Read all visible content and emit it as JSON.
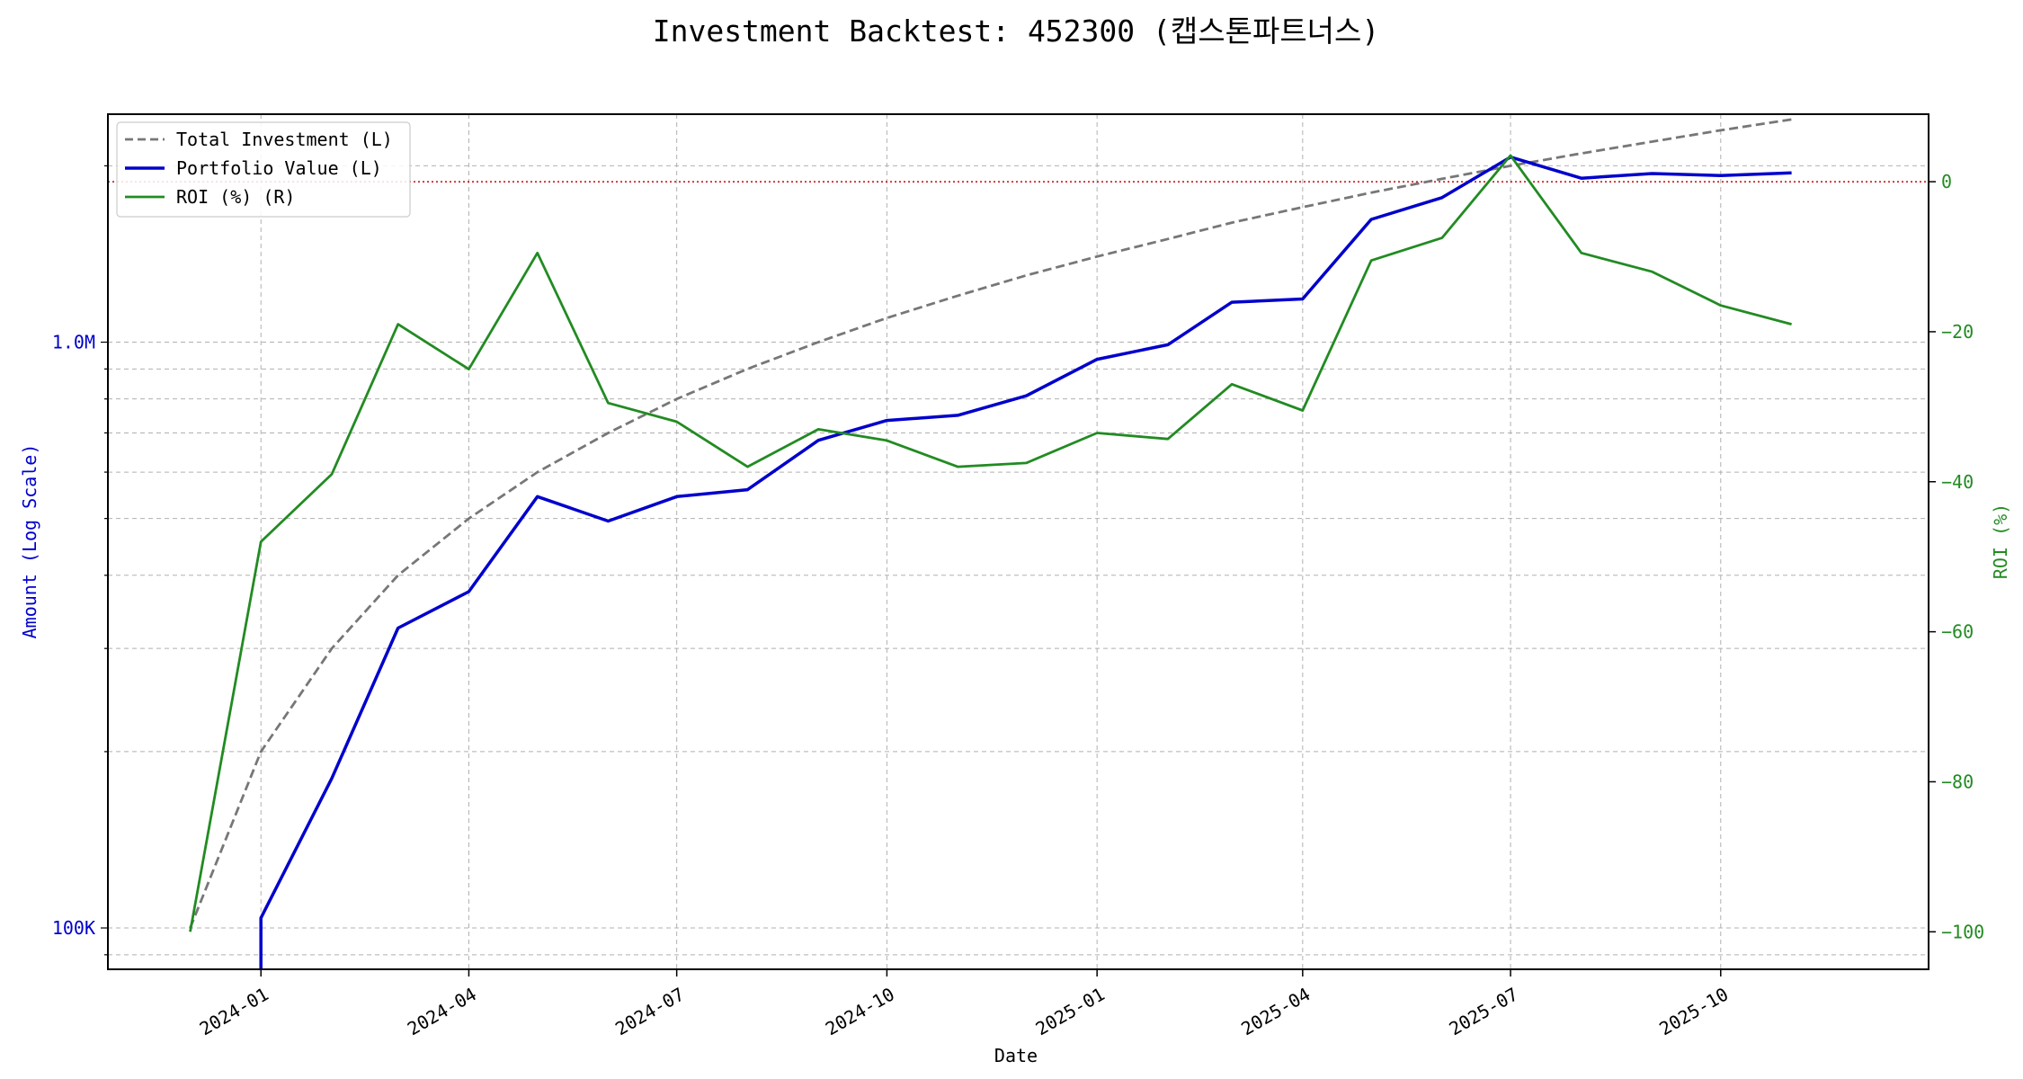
{
  "chart_data": {
    "type": "line",
    "title": "Investment Backtest: 452300 (캡스톤파트너스)",
    "xlabel": "Date",
    "ylabel_left": "Amount (Log Scale)",
    "ylabel_right": "ROI (%)",
    "left_axis": {
      "scale": "log",
      "ylim": [
        85000,
        2450000
      ],
      "ticks": [
        100000,
        1000000
      ],
      "tick_labels": [
        "100K",
        "1.0M"
      ],
      "color": "#0000cc"
    },
    "right_axis": {
      "scale": "linear",
      "ylim": [
        -105,
        9
      ],
      "ticks": [
        0,
        -20,
        -40,
        -60,
        -80,
        -100
      ],
      "tick_labels": [
        "0",
        "−20",
        "−40",
        "−60",
        "−80",
        "−100"
      ],
      "color": "#228b22"
    },
    "x_ticks": [
      "2024-01-01",
      "2024-04-01",
      "2024-07-01",
      "2024-10-01",
      "2025-01-01",
      "2025-04-01",
      "2025-07-01",
      "2025-10-01"
    ],
    "x_tick_labels": [
      "2024-01",
      "2024-04",
      "2024-07",
      "2024-10",
      "2025-01",
      "2025-04",
      "2025-07",
      "2025-10"
    ],
    "xlim": [
      "2023-10-26",
      "2025-12-31"
    ],
    "grid": true,
    "legend_position": "top-left",
    "reference_line": {
      "axis": "right",
      "value": 0,
      "color": "#cc0000",
      "style": "dotted"
    },
    "series": [
      {
        "name": "Total Investment (L)",
        "axis": "left",
        "color": "#777777",
        "style": "dashed",
        "x": [
          "2023-12-01",
          "2024-01-01",
          "2024-02-01",
          "2024-03-01",
          "2024-04-01",
          "2024-05-01",
          "2024-06-01",
          "2024-07-01",
          "2024-08-01",
          "2024-09-01",
          "2024-10-01",
          "2024-11-01",
          "2024-12-01",
          "2025-01-01",
          "2025-02-01",
          "2025-03-01",
          "2025-04-01",
          "2025-05-01",
          "2025-06-01",
          "2025-07-01",
          "2025-08-01",
          "2025-09-01",
          "2025-10-01",
          "2025-11-01"
        ],
        "values": [
          100000,
          200000,
          300000,
          400000,
          500000,
          600000,
          700000,
          800000,
          900000,
          1000000,
          1100000,
          1200000,
          1300000,
          1400000,
          1500000,
          1600000,
          1700000,
          1800000,
          1900000,
          2000000,
          2100000,
          2200000,
          2300000,
          2400000
        ]
      },
      {
        "name": "Portfolio Value (L)",
        "axis": "left",
        "color": "#0000cc",
        "style": "solid",
        "x": [
          "2024-01-01",
          "2024-01-01",
          "2024-02-01",
          "2024-03-01",
          "2024-04-01",
          "2024-05-01",
          "2024-06-01",
          "2024-07-01",
          "2024-08-01",
          "2024-09-01",
          "2024-10-01",
          "2024-11-01",
          "2024-12-01",
          "2025-01-01",
          "2025-02-01",
          "2025-03-01",
          "2025-04-01",
          "2025-05-01",
          "2025-06-01",
          "2025-07-01",
          "2025-08-01",
          "2025-09-01",
          "2025-10-01",
          "2025-11-01"
        ],
        "values": [
          85000,
          104000,
          180000,
          325000,
          375000,
          545000,
          495000,
          545000,
          560000,
          680000,
          735000,
          750000,
          810000,
          935000,
          990000,
          1170000,
          1185000,
          1620000,
          1765000,
          2070000,
          1905000,
          1940000,
          1925000,
          1945000
        ]
      },
      {
        "name": "ROI (%) (R)",
        "axis": "right",
        "color": "#228b22",
        "style": "solid",
        "x": [
          "2023-12-01",
          "2024-01-01",
          "2024-02-01",
          "2024-03-01",
          "2024-04-01",
          "2024-05-01",
          "2024-06-01",
          "2024-07-01",
          "2024-08-01",
          "2024-09-01",
          "2024-10-01",
          "2024-11-01",
          "2024-12-01",
          "2025-01-01",
          "2025-02-01",
          "2025-03-01",
          "2025-04-01",
          "2025-05-01",
          "2025-06-01",
          "2025-07-01",
          "2025-08-01",
          "2025-09-01",
          "2025-10-01",
          "2025-11-01"
        ],
        "values": [
          -100,
          -48,
          -39,
          -19,
          -25,
          -9.5,
          -29.5,
          -32,
          -38,
          -33,
          -34.5,
          -38,
          -37.5,
          -33.5,
          -34.3,
          -27,
          -30.5,
          -10.5,
          -7.5,
          3.5,
          -9.5,
          -12,
          -16.5,
          -19
        ]
      }
    ]
  }
}
